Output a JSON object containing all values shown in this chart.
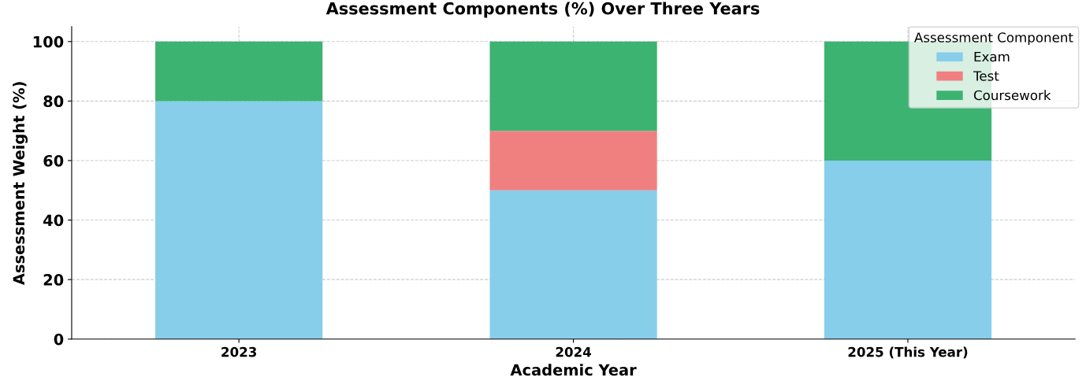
{
  "chart_data": {
    "type": "bar",
    "title": "Assessment Components (%) Over Three Years",
    "xlabel": "Academic Year",
    "ylabel": "Assessment Weight (%)",
    "legend_title": "Assessment Component",
    "categories": [
      "2023",
      "2024",
      "2025 (This Year)"
    ],
    "series": [
      {
        "name": "Exam",
        "color": "#87ceeb",
        "values": [
          80,
          50,
          60
        ]
      },
      {
        "name": "Test",
        "color": "#f08080",
        "values": [
          0,
          20,
          0
        ]
      },
      {
        "name": "Coursework",
        "color": "#3cb371",
        "values": [
          20,
          30,
          40
        ]
      }
    ],
    "stacked": true,
    "ylim": [
      0,
      105
    ],
    "yticks": [
      0,
      20,
      40,
      60,
      80,
      100
    ],
    "grid": true,
    "legend": "top right"
  }
}
